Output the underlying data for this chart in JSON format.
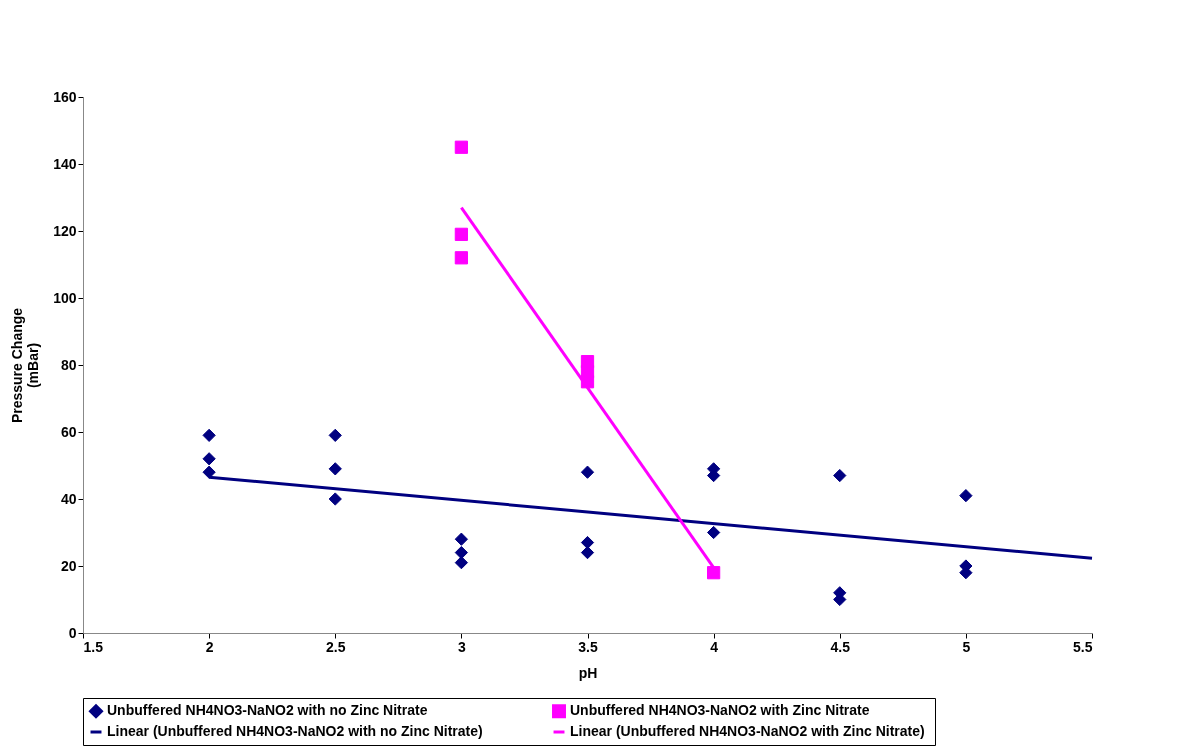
{
  "chart_data": {
    "type": "scatter",
    "xlabel": "pH",
    "ylabel": "Pressure Change (mBar)",
    "xlim": [
      1.5,
      5.5
    ],
    "xticks": [
      1.5,
      2,
      2.5,
      3,
      3.5,
      4,
      4.5,
      5,
      5.5
    ],
    "ylim": [
      0,
      160
    ],
    "yticks": [
      0,
      20,
      40,
      60,
      80,
      100,
      120,
      140,
      160
    ],
    "grid": false,
    "legend": "bottom",
    "series": [
      {
        "name": "Unbuffered NH4NO3-NaNO2  with no Zinc Nitrate",
        "marker": "diamond",
        "color": "#000080",
        "x": [
          2,
          2,
          2,
          2.5,
          2.5,
          2.5,
          3,
          3,
          3,
          3.5,
          3.5,
          3.5,
          4,
          4,
          4,
          4.5,
          4.5,
          4.5,
          5,
          5,
          5
        ],
        "values": [
          59,
          52,
          48,
          59,
          49,
          40,
          28,
          24,
          21,
          48,
          27,
          24,
          49,
          47,
          30,
          47,
          12,
          10,
          41,
          20,
          18
        ]
      },
      {
        "name": "Unbuffered NH4NO3-NaNO2  with Zinc Nitrate",
        "marker": "square",
        "color": "#ff00ff",
        "x": [
          3,
          3,
          3,
          3.5,
          3.5,
          3.5,
          4
        ],
        "values": [
          145,
          119,
          112,
          81,
          78,
          75,
          18
        ]
      },
      {
        "name": "Linear (Unbuffered NH4NO3-NaNO2  with no Zinc Nitrate)",
        "type": "line",
        "marker": "none",
        "color": "#000080",
        "x": [
          2,
          5.5
        ],
        "values": [
          46.5,
          22.3
        ]
      },
      {
        "name": "Linear (Unbuffered NH4NO3-NaNO2  with Zinc Nitrate)",
        "type": "line",
        "marker": "none",
        "color": "#ff00ff",
        "x": [
          3,
          4
        ],
        "values": [
          127,
          19.5
        ]
      }
    ]
  }
}
